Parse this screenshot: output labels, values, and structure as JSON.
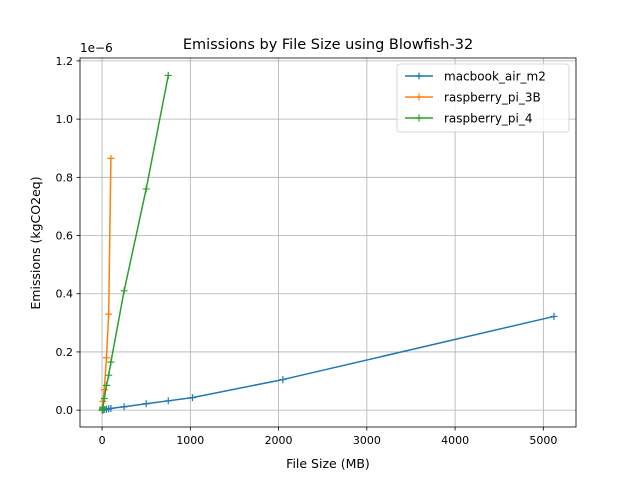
{
  "chart_data": {
    "type": "line",
    "title": "Emissions by File Size using Blowfish-32",
    "xlabel": "File Size (MB)",
    "ylabel": "Emissions (kgCO2eq)",
    "y_scale_label": "1e−6",
    "xlim": [
      -250,
      5370
    ],
    "ylim": [
      -0.058,
      1.21
    ],
    "x_ticks": [
      0,
      1000,
      2000,
      3000,
      4000,
      5000
    ],
    "y_ticks": [
      0.0,
      0.2,
      0.4,
      0.6,
      0.8,
      1.0,
      1.2
    ],
    "x_tick_labels": [
      "0",
      "1000",
      "2000",
      "3000",
      "4000",
      "5000"
    ],
    "y_tick_labels": [
      "0.0",
      "0.2",
      "0.4",
      "0.6",
      "0.8",
      "1.0",
      "1.2"
    ],
    "grid": true,
    "legend_position": "top-right",
    "series": [
      {
        "name": "macbook_air_m2",
        "color": "#1f77b4",
        "x": [
          1,
          2,
          5,
          10,
          25,
          50,
          75,
          100,
          250,
          500,
          750,
          1024,
          2048,
          5120
        ],
        "y": [
          0.0001,
          0.0001,
          0.0003,
          0.0006,
          0.0015,
          0.003,
          0.0045,
          0.006,
          0.0115,
          0.022,
          0.032,
          0.043,
          0.105,
          0.322
        ]
      },
      {
        "name": "raspberry_pi_3B",
        "color": "#ff7f0e",
        "x": [
          1,
          5,
          10,
          25,
          50,
          75,
          100
        ],
        "y": [
          0.0,
          0.01,
          0.03,
          0.07,
          0.18,
          0.33,
          0.865
        ]
      },
      {
        "name": "raspberry_pi_4",
        "color": "#2ca02c",
        "x": [
          1,
          5,
          10,
          25,
          50,
          75,
          100,
          250,
          500,
          750
        ],
        "y": [
          0.0,
          0.005,
          0.01,
          0.04,
          0.085,
          0.12,
          0.165,
          0.41,
          0.76,
          1.15
        ]
      }
    ]
  }
}
